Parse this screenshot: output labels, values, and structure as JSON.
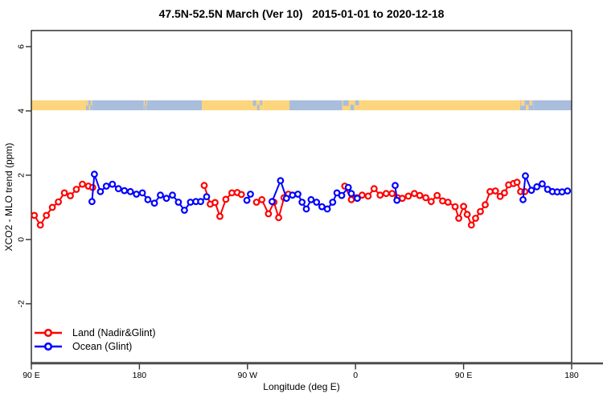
{
  "chart_data": {
    "type": "line",
    "title": "47.5N-52.5N March (Ver 10)   2015-01-01 to 2020-12-18",
    "xlabel": "Longitude (deg E)",
    "ylabel": "XCO2 - MLO trend (ppm)",
    "xlim": [
      90,
      540
    ],
    "ylim": [
      -3.83,
      6.5
    ],
    "grid": false,
    "x_ticks": [
      {
        "value": 90,
        "label": "90 E"
      },
      {
        "value": 180,
        "label": "180"
      },
      {
        "value": 270,
        "label": "90 W"
      },
      {
        "value": 360,
        "label": "0"
      },
      {
        "value": 450,
        "label": "90 E"
      },
      {
        "value": 540,
        "label": "180"
      }
    ],
    "y_ticks": [
      {
        "value": -2,
        "label": "-2"
      },
      {
        "value": 0,
        "label": "0"
      },
      {
        "value": 2,
        "label": "2"
      },
      {
        "value": 4,
        "label": "4"
      },
      {
        "value": 6,
        "label": "6"
      }
    ],
    "series": [
      {
        "name": "Land (Nadir&Glint)",
        "color": "#ff0000",
        "marker": "open-circle",
        "segments": [
          [
            [
              92.5,
              0.75
            ],
            [
              97.5,
              0.45
            ],
            [
              102.5,
              0.75
            ],
            [
              107.5,
              1.0
            ],
            [
              112.5,
              1.17
            ],
            [
              117.5,
              1.45
            ],
            [
              122.5,
              1.36
            ],
            [
              127.5,
              1.56
            ],
            [
              132.5,
              1.72
            ],
            [
              137.5,
              1.66
            ],
            [
              141,
              1.62
            ]
          ],
          [
            [
              234,
              1.68
            ],
            [
              239,
              1.1
            ],
            [
              243,
              1.15
            ],
            [
              247,
              0.72
            ],
            [
              252,
              1.25
            ],
            [
              257,
              1.45
            ],
            [
              261.5,
              1.46
            ],
            [
              265,
              1.4
            ]
          ],
          [
            [
              277.5,
              1.16
            ],
            [
              282,
              1.24
            ],
            [
              287.5,
              0.8
            ],
            [
              292,
              1.16
            ],
            [
              296,
              0.68
            ],
            [
              300.5,
              1.3
            ],
            [
              304,
              1.41
            ]
          ],
          [
            [
              351,
              1.66
            ],
            [
              356.5,
              1.24
            ],
            [
              361,
              1.3
            ],
            [
              365.5,
              1.38
            ],
            [
              370.5,
              1.35
            ],
            [
              375.5,
              1.58
            ],
            [
              380.5,
              1.38
            ],
            [
              385.5,
              1.43
            ],
            [
              390.5,
              1.43
            ],
            [
              395,
              1.3
            ],
            [
              399,
              1.28
            ],
            [
              404,
              1.35
            ],
            [
              409,
              1.43
            ],
            [
              413.5,
              1.37
            ],
            [
              418.5,
              1.3
            ],
            [
              423,
              1.18
            ],
            [
              428,
              1.37
            ],
            [
              432.5,
              1.2
            ],
            [
              437,
              1.16
            ],
            [
              443,
              1.02
            ],
            [
              446,
              0.66
            ],
            [
              450,
              1.03
            ],
            [
              453,
              0.78
            ],
            [
              456.5,
              0.45
            ],
            [
              460,
              0.66
            ],
            [
              464,
              0.87
            ],
            [
              468,
              1.08
            ],
            [
              472,
              1.49
            ],
            [
              476.5,
              1.51
            ],
            [
              480.5,
              1.34
            ],
            [
              484,
              1.45
            ],
            [
              487.5,
              1.7
            ],
            [
              491.5,
              1.74
            ],
            [
              494.5,
              1.78
            ],
            [
              497.5,
              1.49
            ],
            [
              501,
              1.49
            ]
          ]
        ]
      },
      {
        "name": "Ocean (Glint)",
        "color": "#0000ff",
        "marker": "open-circle",
        "segments": [
          [
            [
              140.5,
              1.18
            ],
            [
              142.5,
              2.03
            ],
            [
              147.5,
              1.49
            ],
            [
              152.5,
              1.66
            ],
            [
              157.5,
              1.72
            ],
            [
              162.5,
              1.58
            ],
            [
              167.5,
              1.52
            ],
            [
              172.5,
              1.49
            ],
            [
              177.5,
              1.41
            ],
            [
              182.5,
              1.45
            ],
            [
              187,
              1.24
            ],
            [
              192.5,
              1.13
            ],
            [
              197.5,
              1.38
            ],
            [
              202.5,
              1.28
            ],
            [
              207.5,
              1.38
            ],
            [
              212.5,
              1.16
            ],
            [
              217.5,
              0.91
            ],
            [
              222.5,
              1.16
            ],
            [
              227,
              1.18
            ],
            [
              231,
              1.18
            ],
            [
              236,
              1.33
            ]
          ],
          [
            [
              269.5,
              1.22
            ],
            [
              272.5,
              1.41
            ]
          ],
          [
            [
              290.5,
              1.18
            ],
            [
              297.5,
              1.83
            ],
            [
              302.5,
              1.28
            ],
            [
              307.5,
              1.38
            ],
            [
              312,
              1.41
            ],
            [
              315.5,
              1.16
            ],
            [
              319,
              0.95
            ],
            [
              323,
              1.24
            ],
            [
              327.5,
              1.16
            ],
            [
              332,
              1.02
            ],
            [
              336.5,
              0.95
            ],
            [
              341,
              1.16
            ],
            [
              344.5,
              1.45
            ],
            [
              348.5,
              1.37
            ],
            [
              354,
              1.62
            ],
            [
              356.5,
              1.43
            ],
            [
              361.5,
              1.28
            ]
          ],
          [
            [
              393,
              1.68
            ],
            [
              394.5,
              1.22
            ]
          ],
          [
            [
              499.5,
              1.24
            ],
            [
              501.5,
              1.98
            ],
            [
              506.5,
              1.53
            ],
            [
              511,
              1.64
            ],
            [
              515.5,
              1.73
            ],
            [
              520,
              1.56
            ],
            [
              524,
              1.49
            ],
            [
              528,
              1.48
            ],
            [
              532,
              1.48
            ],
            [
              536.5,
              1.51
            ]
          ]
        ]
      }
    ],
    "surface_band": {
      "description": "land/ocean mask strip drawn above y=4",
      "y_from": 4.02,
      "y_to": 4.33,
      "land_color": "#fcd57c",
      "ocean_color": "#a9bddc",
      "segments": [
        {
          "from": 90,
          "to": 135.5,
          "type": "land"
        },
        {
          "from": 135.5,
          "to": 141,
          "type": "mixed-ocean"
        },
        {
          "from": 141,
          "to": 183.5,
          "type": "ocean"
        },
        {
          "from": 183.5,
          "to": 186.5,
          "type": "mixed-ocean"
        },
        {
          "from": 186.5,
          "to": 232,
          "type": "ocean"
        },
        {
          "from": 232,
          "to": 274,
          "type": "land"
        },
        {
          "from": 274,
          "to": 283,
          "type": "mixed-land"
        },
        {
          "from": 283,
          "to": 305,
          "type": "land"
        },
        {
          "from": 305,
          "to": 349,
          "type": "ocean"
        },
        {
          "from": 349,
          "to": 364,
          "type": "mixed-land"
        },
        {
          "from": 364,
          "to": 497,
          "type": "land"
        },
        {
          "from": 497,
          "to": 508,
          "type": "mixed-ocean"
        },
        {
          "from": 508,
          "to": 540,
          "type": "ocean"
        }
      ]
    },
    "legend": {
      "position": "bottom-left",
      "items": [
        {
          "label": "Land (Nadir&Glint)",
          "color": "#ff0000"
        },
        {
          "label": "Ocean (Glint)",
          "color": "#0000ff"
        }
      ]
    }
  }
}
